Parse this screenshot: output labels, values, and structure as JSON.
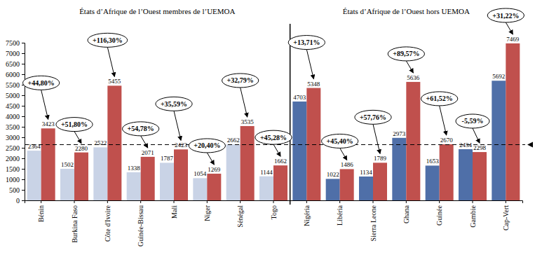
{
  "chart_data": {
    "type": "bar",
    "categories": [
      "Bénin",
      "Burkina Faso",
      "Côte d'Ivoire",
      "Guinée-Bissau",
      "Mali",
      "Niger",
      "Sénégal",
      "Togo",
      "Nigéria",
      "Libéria",
      "Sierra Leone",
      "Ghana",
      "Guinée",
      "Gambie",
      "Cap-Vert"
    ],
    "series": [
      {
        "colors": [
          "#c9d3e6",
          "#c9d3e6",
          "#c9d3e6",
          "#c9d3e6",
          "#c9d3e6",
          "#c9d3e6",
          "#c9d3e6",
          "#c9d3e6",
          "#4f6fa8",
          "#4f6fa8",
          "#4f6fa8",
          "#4f6fa8",
          "#4f6fa8",
          "#4f6fa8",
          "#4f6fa8"
        ],
        "values": [
          2364,
          1502,
          2522,
          1338,
          1787,
          1054,
          2662,
          1144,
          4703,
          1022,
          1134,
          2973,
          1653,
          2434,
          5692
        ]
      },
      {
        "color": "#c0504d",
        "values": [
          3423,
          2280,
          5455,
          2071,
          2423,
          1269,
          3535,
          1662,
          5348,
          1486,
          1789,
          5636,
          2670,
          2298,
          7469
        ]
      }
    ],
    "annotations": [
      "+44,80%",
      "+51,80%",
      "+116,30%",
      "+54,78%",
      "+35,59%",
      "+20,40%",
      "+32,79%",
      "+45,28%",
      "+13,71%",
      "+45,40%",
      "+57,76%",
      "+89,57%",
      "+61,52%",
      "-5,59%",
      "+31,22%"
    ],
    "reference_line": 2650,
    "groups": [
      {
        "title": "États d’Afrique de l’Ouest membres de l’UEMOA",
        "categories": [
          "Bénin",
          "Burkina Faso",
          "Côte d'Ivoire",
          "Guinée-Bissau",
          "Mali",
          "Niger",
          "Sénégal",
          "Togo"
        ]
      },
      {
        "title": "États d’Afrique de l’Ouest hors UEMOA",
        "categories": [
          "Nigéria",
          "Libéria",
          "Sierra Leone",
          "Ghana",
          "Guinée",
          "Gambie",
          "Cap-Vert"
        ]
      }
    ],
    "ylim": [
      0,
      7500
    ],
    "yticks": [
      0,
      500,
      1000,
      1500,
      2000,
      2500,
      3000,
      3500,
      4000,
      4500,
      5000,
      5500,
      6000,
      6500,
      7000,
      7500
    ],
    "grid": false,
    "data_labels": true
  }
}
